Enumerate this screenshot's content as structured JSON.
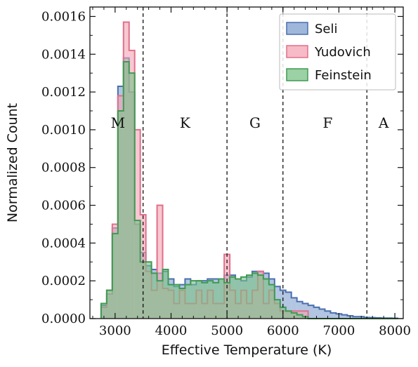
{
  "chart_data": {
    "type": "histogram",
    "xlabel": "Effective Temperature (K)",
    "ylabel": "Normalized Count",
    "xlim": [
      2550,
      8150
    ],
    "ylim": [
      0,
      0.00165
    ],
    "x_ticks": [
      3000,
      4000,
      5000,
      6000,
      7000,
      8000
    ],
    "y_ticks": [
      0.0,
      0.0002,
      0.0004,
      0.0006,
      0.0008,
      0.001,
      0.0012,
      0.0014,
      0.0016
    ],
    "y_tick_labels": [
      "0.0000",
      "0.0002",
      "0.0004",
      "0.0006",
      "0.0008",
      "0.0010",
      "0.0012",
      "0.0014",
      "0.0016"
    ],
    "bin_edges": [
      2750,
      2850,
      2950,
      3050,
      3150,
      3250,
      3350,
      3450,
      3550,
      3650,
      3750,
      3850,
      3950,
      4050,
      4150,
      4250,
      4350,
      4450,
      4550,
      4650,
      4750,
      4850,
      4950,
      5050,
      5150,
      5250,
      5350,
      5450,
      5550,
      5650,
      5750,
      5850,
      5950,
      6050,
      6150,
      6250,
      6350,
      6450,
      6550,
      6650,
      6750,
      6850,
      6950,
      7050,
      7150,
      7250,
      7350,
      7450,
      7550,
      7650,
      7750,
      7850,
      7950,
      8050
    ],
    "series": [
      {
        "name": "Seli",
        "color": "#7f9fcf",
        "edge": "#4a6fae",
        "values": [
          7e-05,
          0.00013,
          0.00048,
          0.00123,
          0.00138,
          0.0012,
          0.0005,
          0.00035,
          0.00028,
          0.00026,
          0.00024,
          0.00025,
          0.00021,
          0.00017,
          0.00018,
          0.00021,
          0.00018,
          0.0002,
          0.0002,
          0.00021,
          0.00021,
          0.00021,
          0.00023,
          0.00023,
          0.00021,
          0.0002,
          0.00022,
          0.00025,
          0.00025,
          0.00024,
          0.00021,
          0.00017,
          0.00015,
          0.00014,
          0.00011,
          9e-05,
          8e-05,
          7e-05,
          6e-05,
          5e-05,
          4e-05,
          3e-05,
          2.5e-05,
          2e-05,
          1.5e-05,
          1e-05,
          1e-05,
          6e-06,
          5e-06,
          4e-06,
          3e-06,
          3e-06,
          2e-06
        ]
      },
      {
        "name": "Yudovich",
        "color": "#f4a3b4",
        "edge": "#e0708a",
        "values": [
          6e-05,
          0.00015,
          0.0005,
          0.00118,
          0.00157,
          0.00142,
          0.001,
          0.00055,
          0.00025,
          0.00015,
          0.0006,
          0.00016,
          0.00015,
          8e-05,
          0.00015,
          8e-05,
          8e-05,
          0.00015,
          8e-05,
          0.00015,
          8e-05,
          8e-05,
          0.00034,
          0.00015,
          8e-05,
          0.00015,
          8e-05,
          0.00015,
          0.00025,
          8e-05,
          0.00015,
          8e-05,
          4e-05,
          4e-05,
          4e-05,
          4e-05,
          4e-05,
          0.0,
          0.0,
          0.0,
          0.0,
          0.0,
          0.0,
          0.0,
          0.0,
          0.0,
          0.0,
          0.0,
          0.0,
          0.0,
          0.0,
          0.0,
          0.0
        ]
      },
      {
        "name": "Feinstein",
        "color": "#79c286",
        "edge": "#3f9a52",
        "values": [
          8e-05,
          0.00015,
          0.00045,
          0.0011,
          0.00136,
          0.0013,
          0.00052,
          0.0003,
          0.0003,
          0.00024,
          0.0002,
          0.00026,
          0.00018,
          0.00018,
          0.00016,
          0.00018,
          0.0002,
          0.0002,
          0.00019,
          0.0002,
          0.00019,
          0.00021,
          0.00019,
          0.00022,
          0.00021,
          0.00022,
          0.00023,
          0.00024,
          0.00023,
          0.00021,
          0.00018,
          0.0001,
          6e-05,
          4e-05,
          3e-05,
          2e-05,
          1e-05,
          0.0,
          0.0,
          0.0,
          0.0,
          0.0,
          0.0,
          0.0,
          0.0,
          0.0,
          0.0,
          0.0,
          0.0,
          0.0,
          0.0,
          0.0,
          0.0
        ]
      }
    ],
    "vlines": [
      3500,
      5000,
      6000,
      7500
    ],
    "region_labels": [
      {
        "text": "M",
        "x": 3050
      },
      {
        "text": "K",
        "x": 4250
      },
      {
        "text": "G",
        "x": 5500
      },
      {
        "text": "F",
        "x": 6800
      },
      {
        "text": "A",
        "x": 7800
      }
    ],
    "region_label_y": 0.001,
    "legend_position": "top-right",
    "grid": false
  }
}
